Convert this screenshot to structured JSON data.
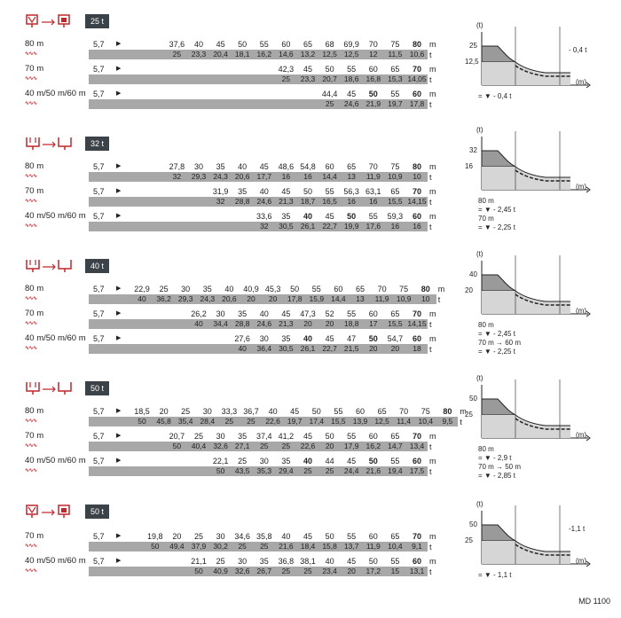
{
  "footer": "MD 1100",
  "sections": [
    {
      "badge": "25 t",
      "mode": "tower",
      "rows": [
        {
          "label": "80 m",
          "hook": "5,7",
          "radii": [
            "37,6",
            "40",
            "45",
            "50",
            "55",
            "60",
            "65",
            "68",
            "69,9",
            "70",
            "75",
            "80"
          ],
          "bold": [
            11
          ],
          "caps": [
            "25",
            "23,3",
            "20,4",
            "18,1",
            "16,2",
            "14,6",
            "13,2",
            "12,5",
            "12,5",
            "12",
            "11,5",
            "10,6"
          ],
          "unit_r": "m",
          "unit_t": "t"
        },
        {
          "label": "70 m",
          "hook": "5,7",
          "radii": [
            "42,3",
            "45",
            "50",
            "55",
            "60",
            "65",
            "70"
          ],
          "bold": [
            6
          ],
          "caps": [
            "25",
            "23,3",
            "20,7",
            "18,6",
            "16,8",
            "15,3",
            "14,05"
          ],
          "unit_r": "m",
          "unit_t": "t"
        },
        {
          "label": "40 m/50 m/60 m",
          "hook": "5,7",
          "radii": [
            "44,4",
            "45",
            "50",
            "55",
            "60"
          ],
          "bold": [
            2,
            4
          ],
          "caps": [
            "25",
            "24,6",
            "21,9",
            "19,7",
            "17,8"
          ],
          "unit_r": "m",
          "unit_t": "t"
        }
      ],
      "diagram": {
        "y_top": "25",
        "y_mid": "12,5",
        "note_right": "- 0,4 t",
        "notes": [
          "= ▼ - 0,4 t"
        ]
      }
    },
    {
      "badge": "32 t",
      "mode": "luffing",
      "rows": [
        {
          "label": "80 m",
          "hook": "5,7",
          "radii": [
            "27,8",
            "30",
            "35",
            "40",
            "45",
            "48,6",
            "54,8",
            "60",
            "65",
            "70",
            "75",
            "80"
          ],
          "bold": [
            11
          ],
          "caps": [
            "32",
            "29,3",
            "24,3",
            "20,6",
            "17,7",
            "16",
            "16",
            "14,4",
            "13",
            "11,9",
            "10,9",
            "10"
          ],
          "unit_r": "m",
          "unit_t": "t"
        },
        {
          "label": "70 m",
          "hook": "5,7",
          "radii": [
            "31,9",
            "35",
            "40",
            "45",
            "50",
            "55",
            "56,3",
            "63,1",
            "65",
            "70"
          ],
          "bold": [
            9
          ],
          "caps": [
            "32",
            "28,8",
            "24,6",
            "21,3",
            "18,7",
            "16,5",
            "16",
            "16",
            "15,5",
            "14,15"
          ],
          "unit_r": "m",
          "unit_t": "t"
        },
        {
          "label": "40 m/50 m/60 m",
          "hook": "5,7",
          "radii": [
            "33,6",
            "35",
            "40",
            "45",
            "50",
            "55",
            "59,3",
            "60"
          ],
          "bold": [
            2,
            4,
            7
          ],
          "caps": [
            "32",
            "30,5",
            "26,1",
            "22,7",
            "19,9",
            "17,6",
            "16",
            "16"
          ],
          "unit_r": "m",
          "unit_t": "t"
        }
      ],
      "diagram": {
        "y_top": "32",
        "y_mid": "16",
        "note_right": "",
        "notes": [
          "80 m",
          "= ▼ - 2,45 t",
          "70 m",
          "= ▼ - 2,25 t"
        ]
      }
    },
    {
      "badge": "40 t",
      "mode": "luffing",
      "rows": [
        {
          "label": "80 m",
          "hook": "5,7",
          "radii": [
            "22,9",
            "25",
            "30",
            "35",
            "40",
            "40,9",
            "45,3",
            "50",
            "55",
            "60",
            "65",
            "70",
            "75",
            "80"
          ],
          "bold": [
            13
          ],
          "caps": [
            "40",
            "36,2",
            "29,3",
            "24,3",
            "20,6",
            "20",
            "20",
            "17,8",
            "15,9",
            "14,4",
            "13",
            "11,9",
            "10,9",
            "10"
          ],
          "unit_r": "m",
          "unit_t": "t"
        },
        {
          "label": "70 m",
          "hook": "5,7",
          "radii": [
            "26,2",
            "30",
            "35",
            "40",
            "45",
            "47,3",
            "52",
            "55",
            "60",
            "65",
            "70"
          ],
          "bold": [
            10
          ],
          "caps": [
            "40",
            "34,4",
            "28,8",
            "24,6",
            "21,3",
            "20",
            "20",
            "18,8",
            "17",
            "15,5",
            "14,15"
          ],
          "unit_r": "m",
          "unit_t": "t"
        },
        {
          "label": "40 m/50 m/60 m",
          "hook": "5,7",
          "radii": [
            "27,6",
            "30",
            "35",
            "40",
            "45",
            "47",
            "50",
            "54,7",
            "60"
          ],
          "bold": [
            3,
            6,
            8
          ],
          "caps": [
            "40",
            "36,4",
            "30,5",
            "26,1",
            "22,7",
            "21,5",
            "20",
            "20",
            "18"
          ],
          "unit_r": "m",
          "unit_t": "t"
        }
      ],
      "diagram": {
        "y_top": "40",
        "y_mid": "20",
        "note_right": "",
        "notes": [
          "80 m",
          "= ▼ - 2,45 t",
          "70 m → 60 m",
          "= ▼ - 2,25 t"
        ]
      }
    },
    {
      "badge": "50 t",
      "mode": "luffing",
      "rows": [
        {
          "label": "80 m",
          "hook": "5,7",
          "radii": [
            "18,5",
            "20",
            "25",
            "30",
            "33,3",
            "36,7",
            "40",
            "45",
            "50",
            "55",
            "60",
            "65",
            "70",
            "75",
            "80"
          ],
          "bold": [
            14
          ],
          "caps": [
            "50",
            "45,8",
            "35,4",
            "28,4",
            "25",
            "25",
            "22,6",
            "19,7",
            "17,4",
            "15,5",
            "13,9",
            "12,5",
            "11,4",
            "10,4",
            "9,5"
          ],
          "unit_r": "m",
          "unit_t": "t"
        },
        {
          "label": "70 m",
          "hook": "5,7",
          "radii": [
            "20,7",
            "25",
            "30",
            "35",
            "37,4",
            "41,2",
            "45",
            "50",
            "55",
            "60",
            "65",
            "70"
          ],
          "bold": [
            11
          ],
          "caps": [
            "50",
            "40,4",
            "32,6",
            "27,1",
            "25",
            "25",
            "22,6",
            "20",
            "17,9",
            "16,2",
            "14,7",
            "13,4"
          ],
          "unit_r": "m",
          "unit_t": "t"
        },
        {
          "label": "40 m/50 m/60 m",
          "hook": "5,7",
          "radii": [
            "22,1",
            "25",
            "30",
            "35",
            "40",
            "44",
            "45",
            "50",
            "55",
            "60"
          ],
          "bold": [
            4,
            7,
            9
          ],
          "caps": [
            "50",
            "43,5",
            "35,3",
            "29,4",
            "25",
            "25",
            "24,4",
            "21,6",
            "19,4",
            "17,5"
          ],
          "unit_r": "m",
          "unit_t": "t"
        }
      ],
      "diagram": {
        "y_top": "50",
        "y_mid": "25",
        "note_right": "",
        "notes": [
          "80 m",
          "= ▼ - 2,9 t",
          "70 m → 50 m",
          "= ▼ - 2,85 t"
        ]
      }
    },
    {
      "badge": "50 t",
      "mode": "tower",
      "rows": [
        {
          "label": "70 m",
          "hook": "5,7",
          "radii": [
            "19,8",
            "20",
            "25",
            "30",
            "34,6",
            "35,8",
            "40",
            "45",
            "50",
            "55",
            "60",
            "65",
            "70"
          ],
          "bold": [
            12
          ],
          "caps": [
            "50",
            "49,4",
            "37,9",
            "30,2",
            "25",
            "25",
            "21,6",
            "18,4",
            "15,8",
            "13,7",
            "11,9",
            "10,4",
            "9,1"
          ],
          "unit_r": "m",
          "unit_t": "t"
        },
        {
          "label": "40 m/50 m/60 m",
          "hook": "5,7",
          "radii": [
            "21,1",
            "25",
            "30",
            "35",
            "36,8",
            "38,1",
            "40",
            "45",
            "50",
            "55",
            "60"
          ],
          "bold": [
            10
          ],
          "caps": [
            "50",
            "40,9",
            "32,6",
            "26,7",
            "25",
            "25",
            "23,4",
            "20",
            "17,2",
            "15",
            "13,1"
          ],
          "unit_r": "m",
          "unit_t": "t"
        }
      ],
      "diagram": {
        "y_top": "50",
        "y_mid": "25",
        "note_right": "-1,1 t",
        "notes": [
          "= ▼ - 1,1 t"
        ]
      }
    }
  ],
  "axis": {
    "t": "(t)",
    "m": "(m)"
  },
  "colors": {
    "red": "#c0272d",
    "dark": "#3b4248",
    "bar": "#a8a8a8",
    "bar_light": "#dcdcdc",
    "fill": "#9a9a9a"
  }
}
